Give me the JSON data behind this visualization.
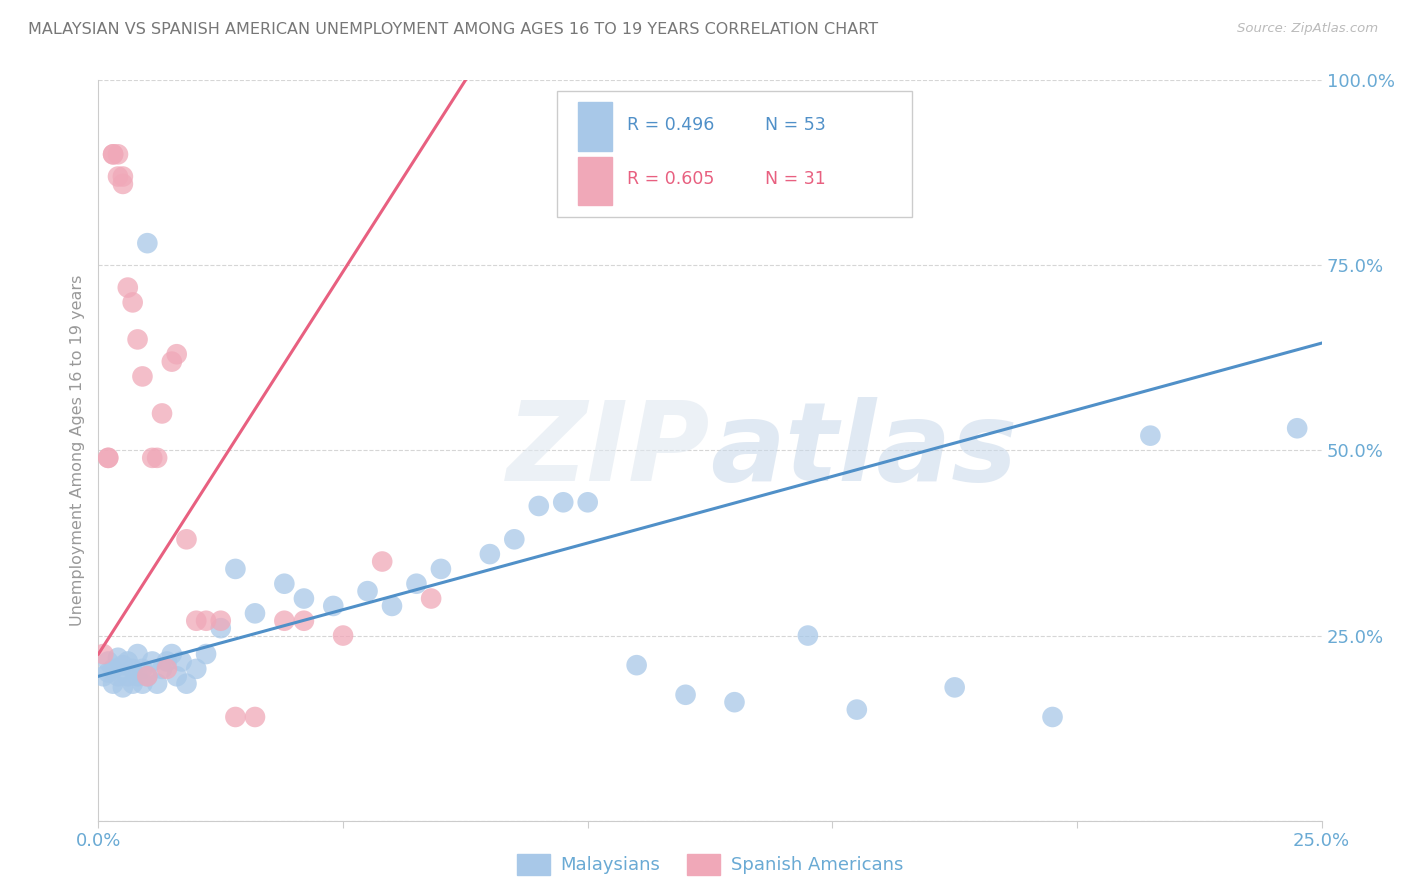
{
  "title": "MALAYSIAN VS SPANISH AMERICAN UNEMPLOYMENT AMONG AGES 16 TO 19 YEARS CORRELATION CHART",
  "source": "Source: ZipAtlas.com",
  "ylabel": "Unemployment Among Ages 16 to 19 years",
  "xlim": [
    0.0,
    0.25
  ],
  "ylim": [
    0.0,
    1.0
  ],
  "blue_color": "#a8c8e8",
  "pink_color": "#f0a8b8",
  "blue_line_color": "#5090c8",
  "pink_line_color": "#e86080",
  "grid_color": "#cccccc",
  "axis_label_color": "#6aaad4",
  "legend_r_blue": "R = 0.496",
  "legend_n_blue": "N = 53",
  "legend_r_pink": "R = 0.605",
  "legend_n_pink": "N = 31",
  "blue_trend_x": [
    0.0,
    0.25
  ],
  "blue_trend_y": [
    0.195,
    0.645
  ],
  "pink_trend_x": [
    0.0,
    0.075
  ],
  "pink_trend_y": [
    0.225,
    1.0
  ],
  "mal_x": [
    0.001,
    0.002,
    0.002,
    0.003,
    0.003,
    0.004,
    0.004,
    0.005,
    0.005,
    0.006,
    0.006,
    0.007,
    0.007,
    0.008,
    0.008,
    0.009,
    0.009,
    0.01,
    0.01,
    0.011,
    0.012,
    0.013,
    0.014,
    0.015,
    0.016,
    0.017,
    0.018,
    0.02,
    0.022,
    0.025,
    0.028,
    0.032,
    0.038,
    0.042,
    0.048,
    0.055,
    0.06,
    0.065,
    0.07,
    0.08,
    0.085,
    0.09,
    0.095,
    0.1,
    0.11,
    0.12,
    0.13,
    0.145,
    0.155,
    0.175,
    0.195,
    0.215,
    0.245
  ],
  "mal_y": [
    0.195,
    0.2,
    0.215,
    0.185,
    0.205,
    0.195,
    0.22,
    0.18,
    0.21,
    0.195,
    0.215,
    0.185,
    0.205,
    0.195,
    0.225,
    0.185,
    0.205,
    0.195,
    0.78,
    0.215,
    0.185,
    0.205,
    0.215,
    0.225,
    0.195,
    0.215,
    0.185,
    0.205,
    0.225,
    0.26,
    0.34,
    0.28,
    0.32,
    0.3,
    0.29,
    0.31,
    0.29,
    0.32,
    0.34,
    0.36,
    0.38,
    0.425,
    0.43,
    0.43,
    0.21,
    0.17,
    0.16,
    0.25,
    0.15,
    0.18,
    0.14,
    0.52,
    0.53
  ],
  "sp_x": [
    0.001,
    0.002,
    0.002,
    0.003,
    0.003,
    0.004,
    0.004,
    0.005,
    0.005,
    0.006,
    0.007,
    0.008,
    0.009,
    0.01,
    0.011,
    0.012,
    0.013,
    0.014,
    0.015,
    0.016,
    0.018,
    0.02,
    0.022,
    0.025,
    0.028,
    0.032,
    0.038,
    0.042,
    0.05,
    0.058,
    0.068
  ],
  "sp_y": [
    0.225,
    0.49,
    0.49,
    0.9,
    0.9,
    0.9,
    0.87,
    0.87,
    0.86,
    0.72,
    0.7,
    0.65,
    0.6,
    0.195,
    0.49,
    0.49,
    0.55,
    0.205,
    0.62,
    0.63,
    0.38,
    0.27,
    0.27,
    0.27,
    0.14,
    0.14,
    0.27,
    0.27,
    0.25,
    0.35,
    0.3
  ]
}
